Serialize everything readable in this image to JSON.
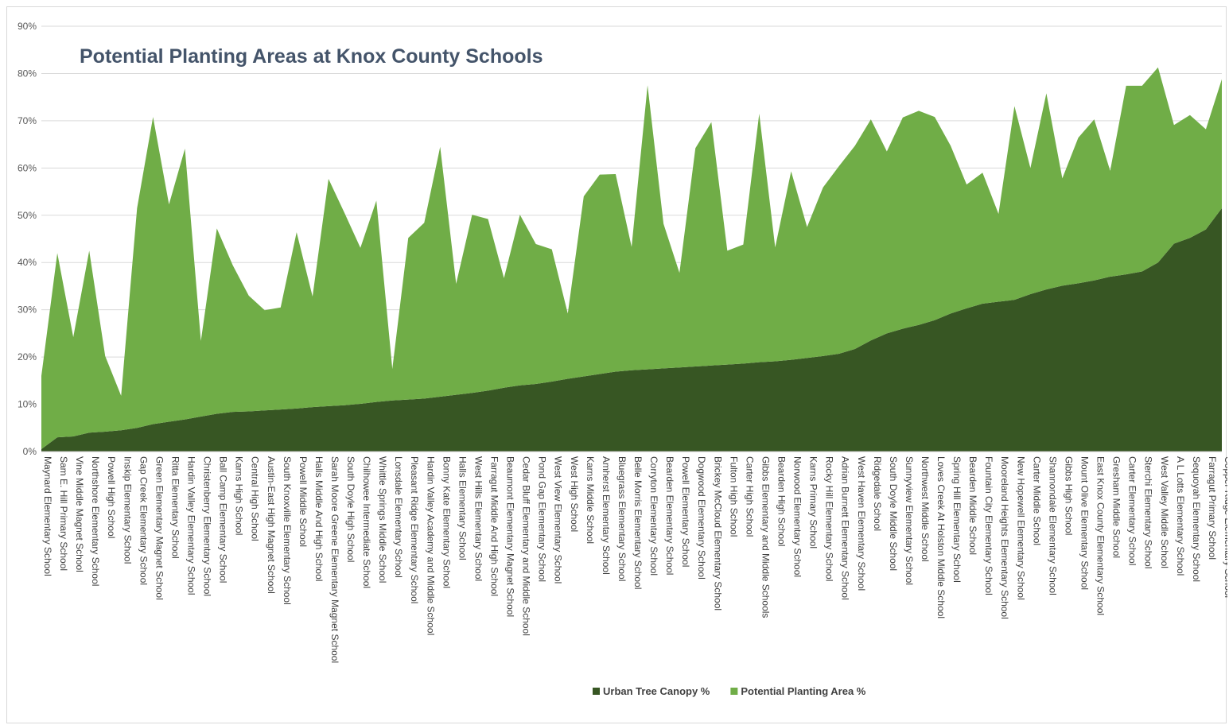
{
  "chart_data": {
    "type": "area",
    "title": "Potential Planting Areas at Knox County Schools",
    "xlabel": "",
    "ylabel": "",
    "ylim": [
      0,
      90
    ],
    "yticks": [
      "0%",
      "10%",
      "20%",
      "30%",
      "40%",
      "50%",
      "60%",
      "70%",
      "80%",
      "90%"
    ],
    "stacked": true,
    "grid": true,
    "legend_position": "bottom",
    "categories": [
      "Maynard Elementary School",
      "Sam E. Hill Primary School",
      "Vine Middle Magnet School",
      "Northshore Elementary School",
      "Powell High School",
      "Inskip Elementary School",
      "Gap Creek Elementary School",
      "Green Elementary Magnet School",
      "Ritta Elementary School",
      "Hardin Valley Elementary School",
      "Christenberry Elementary School",
      "Ball Camp Elementary School",
      "Karns High School",
      "Central High School",
      "Austin-East High Magnet School",
      "South Knoxville Elementary School",
      "Powell Middle School",
      "Halls Middle And High School",
      "Sarah Moore Greene Elementary Magnet School",
      "South Doyle High School",
      "Chilhowee Intermediate School",
      "Whittle Springs Middle School",
      "Lonsdale Elementary School",
      "Pleasant Ridge Elementary School",
      "Hardin Valley Academy and Middle School",
      "Bonny Kate Elementary School",
      "Halls Elementary School",
      "West Hills Elementary School",
      "Farragut Middle And High School",
      "Beaumont Elementary Magnet School",
      "Cedar Bluff Elementary and Middle School",
      "Pond Gap Elementary School",
      "West View Elementary School",
      "West High School",
      "Karns Middle School",
      "Amherst Elementary School",
      "Bluegrass Elementary School",
      "Belle Morris Elementary School",
      "Corryton Elementary School",
      "Bearden Elementary School",
      "Powell Elementary School",
      "Dogwood Elementary School",
      "Brickey McCloud Elementary School",
      "Fulton High School",
      "Carter High School",
      "Gibbs Elementary and Middle Schools",
      "Bearden High School",
      "Norwood Elementary School",
      "Karns Primary School",
      "Rocky Hill Elementary School",
      "Adrian Burnett Elementary School",
      "West Haven Elementary School",
      "Ridgedale School",
      "South Doyle Middle School",
      "Sunnyview Elementary School",
      "Northwest Middle School",
      "Loves Creek At Holston Middle School",
      "Spring Hill Elementary School",
      "Bearden Middle School",
      "Fountain City Elementary School",
      "Mooreland Heights Elementary School",
      "New Hopewell Elementary School",
      "Carter Middle School",
      "Shannondale Elementary School",
      "Gibbs High School",
      "Mount Olive Elementary School",
      "East Knox County Elementary School",
      "Gresham Middle School",
      "Carter Elementary School",
      "Sterchi Elementary School",
      "West Valley Middle School",
      "A L Lotts Elementary School",
      "Sequoyah Elementary School",
      "Farragut Primary School",
      "Copper Ridge Elementary School"
    ],
    "series": [
      {
        "name": "Urban Tree Canopy %",
        "color": "#375623",
        "values": [
          0.5,
          3.0,
          3.2,
          4.0,
          4.2,
          4.5,
          5.0,
          5.8,
          6.3,
          6.8,
          7.4,
          8.0,
          8.4,
          8.5,
          8.7,
          8.9,
          9.1,
          9.4,
          9.6,
          9.8,
          10.1,
          10.5,
          10.8,
          11.0,
          11.2,
          11.6,
          12.0,
          12.4,
          12.9,
          13.5,
          14.0,
          14.3,
          14.8,
          15.4,
          15.9,
          16.4,
          16.9,
          17.2,
          17.4,
          17.6,
          17.8,
          18.0,
          18.2,
          18.4,
          18.6,
          18.9,
          19.1,
          19.4,
          19.8,
          20.2,
          20.7,
          21.7,
          23.5,
          25.0,
          26.0,
          26.8,
          27.8,
          29.2,
          30.3,
          31.3,
          31.7,
          32.1,
          33.3,
          34.3,
          35.1,
          35.6,
          36.2,
          37.0,
          37.5,
          38.1,
          40.0,
          44.0,
          45.2,
          47.0,
          51.5
        ]
      },
      {
        "name": "Potential Planting Area %",
        "color": "#70ad47",
        "values": [
          15.5,
          39.0,
          21.0,
          38.5,
          16.0,
          7.3,
          46.5,
          65.0,
          46.0,
          57.3,
          16.0,
          39.2,
          31.0,
          24.5,
          21.2,
          21.6,
          37.3,
          23.4,
          48.1,
          40.7,
          33.0,
          42.6,
          6.7,
          34.2,
          37.2,
          52.9,
          23.5,
          37.7,
          36.3,
          23.2,
          36.1,
          29.6,
          28.0,
          13.8,
          38.1,
          42.2,
          41.8,
          26.1,
          60.1,
          30.6,
          20.0,
          46.2,
          51.5,
          24.1,
          25.2,
          52.6,
          24.1,
          39.9,
          27.7,
          35.7,
          39.7,
          43.0,
          46.8,
          38.5,
          44.7,
          45.3,
          43.0,
          35.5,
          26.2,
          27.7,
          18.6,
          41.0,
          26.7,
          41.5,
          22.7,
          30.8,
          34.1,
          22.4,
          39.9,
          39.3,
          41.3,
          25.1,
          26.0,
          21.2,
          27.3
        ]
      }
    ]
  }
}
